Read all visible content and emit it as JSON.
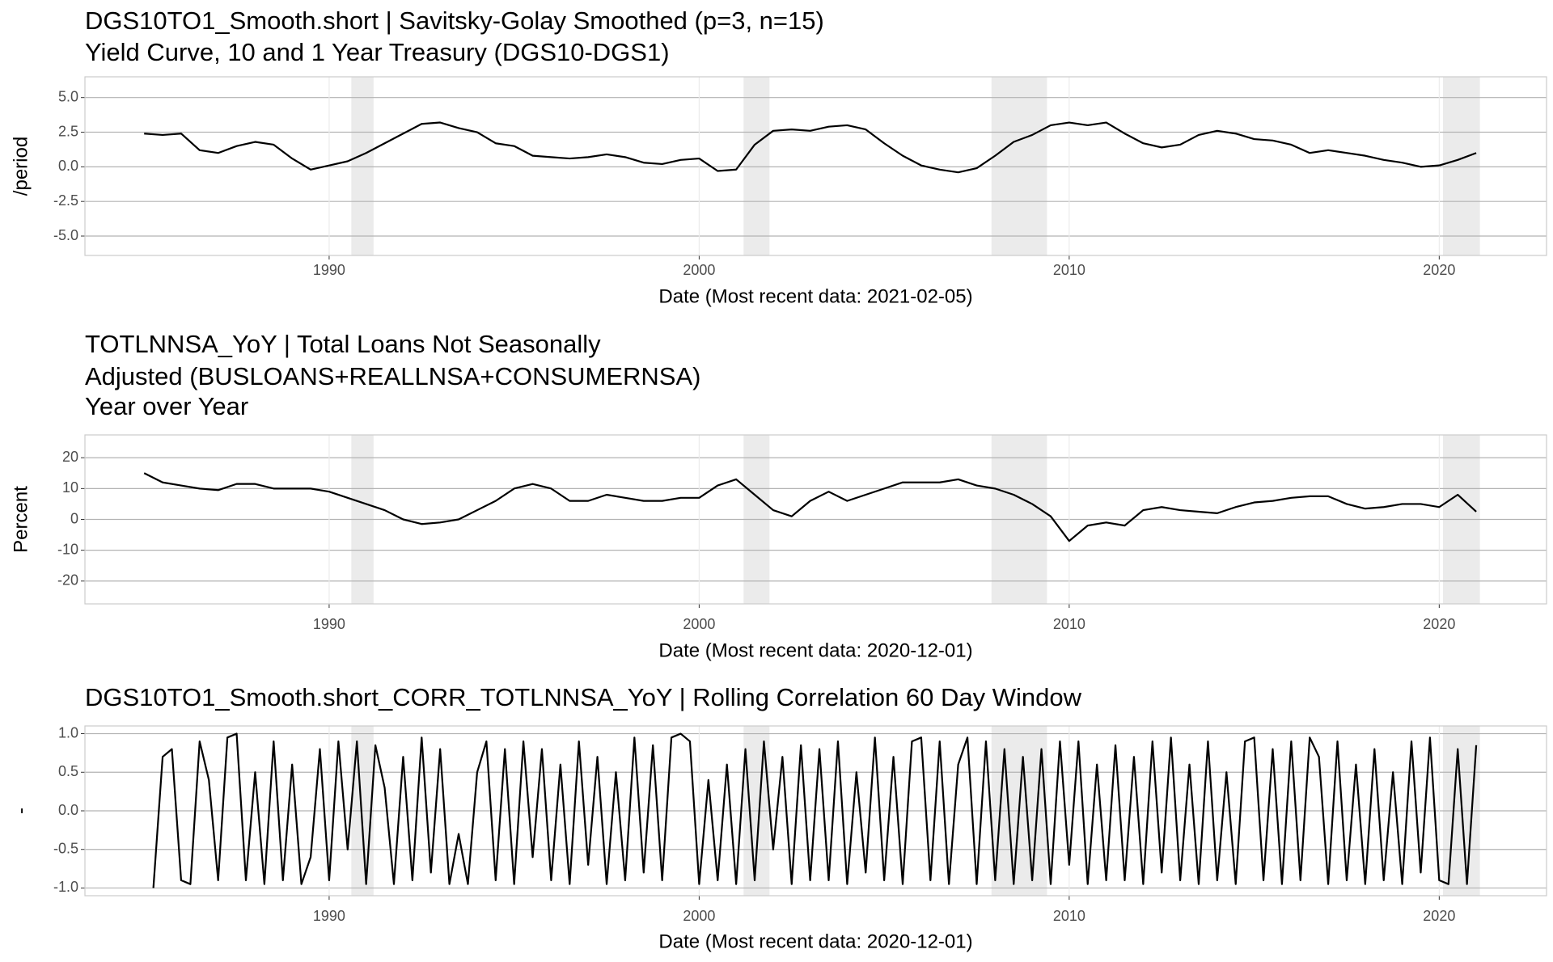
{
  "chart_data": [
    {
      "type": "line",
      "title": [
        "DGS10TO1_Smooth.short | Savitsky-Golay Smoothed (p=3, n=15)",
        "Yield Curve, 10 and 1 Year Treasury (DGS10-DGS1)"
      ],
      "x_label": "Date (Most recent data: 2021-02-05)",
      "y_label": "/period",
      "grid": true,
      "xlim": [
        1983.4,
        2022.9
      ],
      "xticks": [
        1990,
        2000,
        2010,
        2020
      ],
      "ylim": [
        -6.4,
        6.5
      ],
      "yticks": [
        {
          "value": 5,
          "label": "5.0"
        },
        {
          "value": 2.5,
          "label": "2.5"
        },
        {
          "value": 0,
          "label": "0.0"
        },
        {
          "value": -2.5,
          "label": "-2.5"
        },
        {
          "value": -5,
          "label": "-5.0"
        }
      ],
      "shaded_periods": [
        [
          1990.6,
          1991.2
        ],
        [
          2001.2,
          2001.9
        ],
        [
          2007.9,
          2009.4
        ],
        [
          2020.1,
          2021.1
        ]
      ],
      "shade_color": "#ebebeb",
      "series": [
        {
          "color": "#000000",
          "x": [
            1985,
            1985.5,
            1986,
            1986.5,
            1987,
            1987.5,
            1988,
            1988.5,
            1989,
            1989.5,
            1990,
            1990.5,
            1991,
            1991.5,
            1992,
            1992.5,
            1993,
            1993.5,
            1994,
            1994.5,
            1995,
            1995.5,
            1996,
            1996.5,
            1997,
            1997.5,
            1998,
            1998.5,
            1999,
            1999.5,
            2000,
            2000.5,
            2001,
            2001.5,
            2002,
            2002.5,
            2003,
            2003.5,
            2004,
            2004.5,
            2005,
            2005.5,
            2006,
            2006.5,
            2007,
            2007.5,
            2008,
            2008.5,
            2009,
            2009.5,
            2010,
            2010.5,
            2011,
            2011.5,
            2012,
            2012.5,
            2013,
            2013.5,
            2014,
            2014.5,
            2015,
            2015.5,
            2016,
            2016.5,
            2017,
            2017.5,
            2018,
            2018.5,
            2019,
            2019.5,
            2020,
            2020.5,
            2021
          ],
          "values": [
            2.4,
            2.3,
            2.4,
            1.2,
            1.0,
            1.5,
            1.8,
            1.6,
            0.6,
            -0.2,
            0.1,
            0.4,
            1.0,
            1.7,
            2.4,
            3.1,
            3.2,
            2.8,
            2.5,
            1.7,
            1.5,
            0.8,
            0.7,
            0.6,
            0.7,
            0.9,
            0.7,
            0.3,
            0.2,
            0.5,
            0.6,
            -0.3,
            -0.2,
            1.6,
            2.6,
            2.7,
            2.6,
            2.9,
            3.0,
            2.7,
            1.7,
            0.8,
            0.1,
            -0.2,
            -0.4,
            -0.1,
            0.8,
            1.8,
            2.3,
            3.0,
            3.2,
            3.0,
            3.2,
            2.4,
            1.7,
            1.4,
            1.6,
            2.3,
            2.6,
            2.4,
            2.0,
            1.9,
            1.6,
            1.0,
            1.2,
            1.0,
            0.8,
            0.5,
            0.3,
            0.0,
            0.1,
            0.5,
            1.0
          ]
        }
      ]
    },
    {
      "type": "line",
      "title": [
        "TOTLNNSA_YoY | Total Loans Not Seasonally",
        "Adjusted (BUSLOANS+REALLNSA+CONSUMERNSA)",
        "Year over Year"
      ],
      "x_label": "Date (Most recent data: 2020-12-01)",
      "y_label": "Percent",
      "grid": true,
      "xlim": [
        1983.4,
        2022.9
      ],
      "xticks": [
        1990,
        2000,
        2010,
        2020
      ],
      "ylim": [
        -27.4,
        27.4
      ],
      "yticks": [
        20,
        10,
        0,
        -10,
        -20
      ],
      "shaded_periods": [
        [
          1990.6,
          1991.2
        ],
        [
          2001.2,
          2001.9
        ],
        [
          2007.9,
          2009.4
        ],
        [
          2020.1,
          2021.1
        ]
      ],
      "shade_color": "#ebebeb",
      "series": [
        {
          "color": "#000000",
          "x": [
            1985,
            1985.5,
            1986,
            1986.5,
            1987,
            1987.5,
            1988,
            1988.5,
            1989,
            1989.5,
            1990,
            1990.5,
            1991,
            1991.5,
            1992,
            1992.5,
            1993,
            1993.5,
            1994,
            1994.5,
            1995,
            1995.5,
            1996,
            1996.5,
            1997,
            1997.5,
            1998,
            1998.5,
            1999,
            1999.5,
            2000,
            2000.5,
            2001,
            2001.5,
            2002,
            2002.5,
            2003,
            2003.5,
            2004,
            2004.5,
            2005,
            2005.5,
            2006,
            2006.5,
            2007,
            2007.5,
            2008,
            2008.5,
            2009,
            2009.5,
            2010,
            2010.5,
            2011,
            2011.5,
            2012,
            2012.5,
            2013,
            2013.5,
            2014,
            2014.5,
            2015,
            2015.5,
            2016,
            2016.5,
            2017,
            2017.5,
            2018,
            2018.5,
            2019,
            2019.5,
            2020,
            2020.5,
            2021
          ],
          "values": [
            15,
            12,
            11,
            10,
            9.5,
            11.5,
            11.5,
            10,
            10,
            10,
            9,
            7,
            5,
            3,
            0,
            -1.5,
            -1,
            0,
            3,
            6,
            10,
            11.5,
            10,
            6,
            6,
            8,
            7,
            6,
            6,
            7,
            7,
            11,
            13,
            8,
            3,
            1,
            6,
            9,
            6,
            8,
            10,
            12,
            12,
            12,
            13,
            11,
            10,
            8,
            5,
            1,
            -7,
            -2,
            -1,
            -2,
            3,
            4,
            3,
            2.5,
            2,
            4,
            5.5,
            6,
            7,
            7.5,
            7.5,
            5,
            3.5,
            4,
            5,
            5,
            4,
            8,
            2.5
          ]
        }
      ]
    },
    {
      "type": "line",
      "title": [
        "DGS10TO1_Smooth.short_CORR_TOTLNNSA_YoY | Rolling Correlation  60  Day Window"
      ],
      "x_label": "Date (Most recent data: 2020-12-01)",
      "y_label": "-",
      "grid": true,
      "xlim": [
        1983.4,
        2022.9
      ],
      "xticks": [
        1990,
        2000,
        2010,
        2020
      ],
      "ylim": [
        -1.1,
        1.1
      ],
      "yticks": [
        {
          "value": 1,
          "label": "1.0"
        },
        {
          "value": 0.5,
          "label": "0.5"
        },
        {
          "value": 0,
          "label": "0.0"
        },
        {
          "value": -0.5,
          "label": "-0.5"
        },
        {
          "value": -1,
          "label": "-1.0"
        }
      ],
      "shaded_periods": [
        [
          1990.6,
          1991.2
        ],
        [
          2001.2,
          2001.9
        ],
        [
          2007.9,
          2009.4
        ],
        [
          2020.1,
          2021.1
        ]
      ],
      "shade_color": "#ebebeb",
      "series": [
        {
          "color": "#000000",
          "x": [
            1985.25,
            1985.5,
            1985.75,
            1986,
            1986.25,
            1986.5,
            1986.75,
            1987,
            1987.25,
            1987.5,
            1987.75,
            1988,
            1988.25,
            1988.5,
            1988.75,
            1989,
            1989.25,
            1989.5,
            1989.75,
            1990,
            1990.25,
            1990.5,
            1990.75,
            1991,
            1991.25,
            1991.5,
            1991.75,
            1992,
            1992.25,
            1992.5,
            1992.75,
            1993,
            1993.25,
            1993.5,
            1993.75,
            1994,
            1994.25,
            1994.5,
            1994.75,
            1995,
            1995.25,
            1995.5,
            1995.75,
            1996,
            1996.25,
            1996.5,
            1996.75,
            1997,
            1997.25,
            1997.5,
            1997.75,
            1998,
            1998.25,
            1998.5,
            1998.75,
            1999,
            1999.25,
            1999.5,
            1999.75,
            2000,
            2000.25,
            2000.5,
            2000.75,
            2001,
            2001.25,
            2001.5,
            2001.75,
            2002,
            2002.25,
            2002.5,
            2002.75,
            2003,
            2003.25,
            2003.5,
            2003.75,
            2004,
            2004.25,
            2004.5,
            2004.75,
            2005,
            2005.25,
            2005.5,
            2005.75,
            2006,
            2006.25,
            2006.5,
            2006.75,
            2007,
            2007.25,
            2007.5,
            2007.75,
            2008,
            2008.25,
            2008.5,
            2008.75,
            2009,
            2009.25,
            2009.5,
            2009.75,
            2010,
            2010.25,
            2010.5,
            2010.75,
            2011,
            2011.25,
            2011.5,
            2011.75,
            2012,
            2012.25,
            2012.5,
            2012.75,
            2013,
            2013.25,
            2013.5,
            2013.75,
            2014,
            2014.25,
            2014.5,
            2014.75,
            2015,
            2015.25,
            2015.5,
            2015.75,
            2016,
            2016.25,
            2016.5,
            2016.75,
            2017,
            2017.25,
            2017.5,
            2017.75,
            2018,
            2018.25,
            2018.5,
            2018.75,
            2019,
            2019.25,
            2019.5,
            2019.75,
            2020,
            2020.25,
            2020.5,
            2020.75,
            2021
          ],
          "values": [
            -1,
            0.7,
            0.8,
            -0.9,
            -0.95,
            0.9,
            0.4,
            -0.9,
            0.95,
            1,
            -0.9,
            0.5,
            -0.95,
            0.9,
            -0.9,
            0.6,
            -0.95,
            -0.6,
            0.8,
            -0.9,
            0.9,
            -0.5,
            0.9,
            -0.95,
            0.85,
            0.3,
            -0.95,
            0.7,
            -0.9,
            0.95,
            -0.8,
            0.8,
            -0.95,
            -0.3,
            -0.95,
            0.5,
            0.9,
            -0.9,
            0.8,
            -0.95,
            0.9,
            -0.6,
            0.8,
            -0.9,
            0.6,
            -0.95,
            0.9,
            -0.7,
            0.7,
            -0.95,
            0.5,
            -0.9,
            0.95,
            -0.8,
            0.85,
            -0.9,
            0.95,
            1,
            0.9,
            -0.95,
            0.4,
            -0.9,
            0.6,
            -0.95,
            0.8,
            -0.9,
            0.9,
            -0.5,
            0.7,
            -0.95,
            0.85,
            -0.9,
            0.8,
            -0.9,
            0.9,
            -0.95,
            0.5,
            -0.8,
            0.95,
            -0.9,
            0.7,
            -0.95,
            0.9,
            0.95,
            -0.9,
            0.9,
            -0.95,
            0.6,
            0.95,
            -0.95,
            0.9,
            -0.9,
            0.8,
            -0.95,
            0.7,
            -0.9,
            0.8,
            -0.95,
            0.9,
            -0.7,
            0.9,
            -0.95,
            0.6,
            -0.9,
            0.85,
            -0.9,
            0.7,
            -0.95,
            0.9,
            -0.8,
            0.95,
            -0.9,
            0.6,
            -0.95,
            0.9,
            -0.9,
            0.5,
            -0.95,
            0.9,
            0.95,
            -0.9,
            0.8,
            -0.95,
            0.9,
            -0.9,
            0.95,
            0.7,
            -0.95,
            0.9,
            -0.9,
            0.6,
            -0.95,
            0.8,
            -0.9,
            0.5,
            -0.95,
            0.9,
            -0.8,
            0.95,
            -0.9,
            -0.95,
            0.8,
            -0.95,
            0.85
          ]
        }
      ]
    }
  ]
}
